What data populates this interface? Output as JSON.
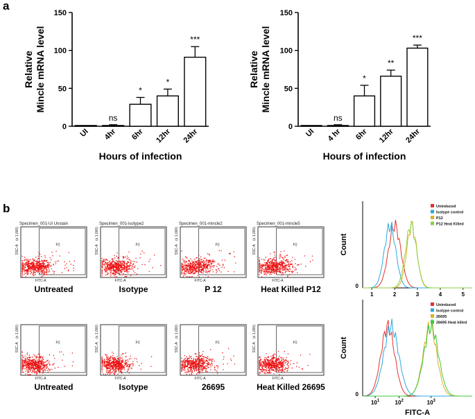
{
  "panel_a_label": "a",
  "panel_b_label": "b",
  "chart_data": [
    {
      "type": "bar",
      "panel": "a-left",
      "categories": [
        "UI",
        "4hr",
        "6hr",
        "12hr",
        "24hr"
      ],
      "values": [
        1,
        1,
        29,
        40,
        91
      ],
      "errors": [
        0,
        1,
        9,
        9,
        14
      ],
      "significance": [
        "",
        "ns",
        "*",
        "*",
        "***"
      ],
      "xlabel": "Hours of infection",
      "ylabel": "Relative\nMincle mRNA level",
      "ylabel_lines": [
        "Relative",
        "Mincle mRNA level"
      ],
      "yticks": [
        0,
        50,
        100,
        150
      ],
      "ylim": [
        0,
        150
      ]
    },
    {
      "type": "bar",
      "panel": "a-right",
      "categories": [
        "UI",
        "4 hr",
        "6hr",
        "12hr",
        "24hr"
      ],
      "values": [
        1,
        1,
        40,
        66,
        103
      ],
      "errors": [
        0,
        1,
        14,
        8,
        4
      ],
      "significance": [
        "",
        "ns",
        "*",
        "**",
        "***"
      ],
      "xlabel": "Hours of infection",
      "ylabel": "Relative\nMincle mRNA level",
      "ylabel_lines": [
        "Relative",
        "Mincle mRNA level"
      ],
      "yticks": [
        0,
        50,
        100,
        150
      ],
      "ylim": [
        0,
        150
      ]
    },
    {
      "type": "scatter",
      "panel": "b-dotplots",
      "gate_label": "P2",
      "xlabel": "FITC-A",
      "ylabel": "SSC-A",
      "ylabel_scale": "(x 1,000)",
      "rows": [
        [
          {
            "title": "Specimen_001-UI Unstain",
            "caption": "Untreated"
          },
          {
            "title": "Specimen_001-isotype2",
            "caption": "Isotype"
          },
          {
            "title": "Specimen_001-mincle2",
            "caption": "P 12"
          },
          {
            "title": "Specimen_001-mincle5",
            "caption": "Heat Killed P12"
          }
        ],
        [
          {
            "title": "",
            "caption": "Untreated"
          },
          {
            "title": "",
            "caption": "Isotype"
          },
          {
            "title": "",
            "caption": "26695"
          },
          {
            "title": "",
            "caption": "Heat Killed 26695"
          }
        ]
      ]
    },
    {
      "type": "line",
      "panel": "b-histogram-top",
      "ylabel": "Count",
      "xticks": [
        "1",
        "2",
        "3",
        "4",
        "5"
      ],
      "y_zero": "0",
      "legend": [
        {
          "name": "Uninduced",
          "color": "#e53030"
        },
        {
          "name": "Isotype control",
          "color": "#29a8e0"
        },
        {
          "name": "P12",
          "color": "#e0b020"
        },
        {
          "name": "P12 Heat Killed",
          "color": "#8ad040"
        }
      ],
      "series_peaks": [
        2.0,
        1.8,
        2.75,
        2.72
      ]
    },
    {
      "type": "line",
      "panel": "b-histogram-bottom",
      "ylabel": "Count",
      "xlabel": "FITC-A",
      "xticks": [
        "10",
        "10",
        "10"
      ],
      "xtick_exponents": [
        "1",
        "2",
        "3"
      ],
      "y_zero": "0",
      "legend": [
        {
          "name": "Uninduced",
          "color": "#e53030"
        },
        {
          "name": "Isotype control",
          "color": "#29a8e0"
        },
        {
          "name": "26695",
          "color": "#e0b020"
        },
        {
          "name": "26695 Heat killed",
          "color": "#3cc83c"
        }
      ],
      "series_peaks": [
        0.8,
        0.95,
        2.65,
        2.7
      ]
    }
  ],
  "colors": {
    "dots": "#ee1111",
    "axis": "#000000",
    "bar_fill": "#ffffff"
  }
}
